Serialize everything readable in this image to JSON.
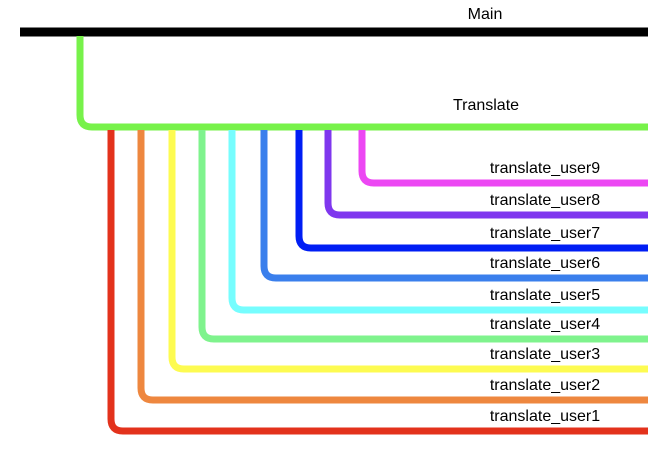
{
  "main": {
    "label": "Main",
    "color": "#000000"
  },
  "translate": {
    "label": "Translate",
    "color": "#77f24a"
  },
  "branches": [
    {
      "label": "translate_user1",
      "color": "#e3321c"
    },
    {
      "label": "translate_user2",
      "color": "#ee873f"
    },
    {
      "label": "translate_user3",
      "color": "#fdfb51"
    },
    {
      "label": "translate_user4",
      "color": "#7ff38d"
    },
    {
      "label": "translate_user5",
      "color": "#76fdfe"
    },
    {
      "label": "translate_user6",
      "color": "#3a7fec"
    },
    {
      "label": "translate_user7",
      "color": "#001ef4"
    },
    {
      "label": "translate_user8",
      "color": "#7f37ee"
    },
    {
      "label": "translate_user9",
      "color": "#ec47f3"
    }
  ]
}
